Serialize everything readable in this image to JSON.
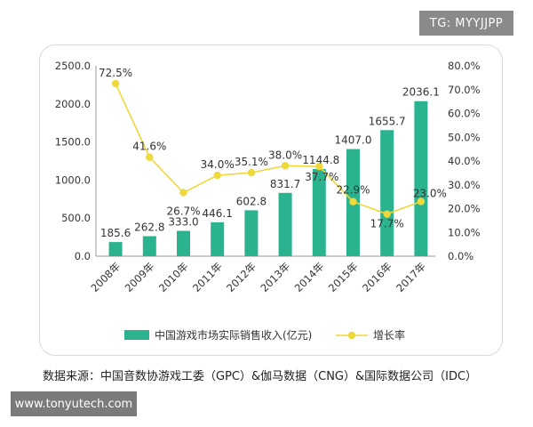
{
  "watermarks": {
    "top": "TG: MYYJJPP",
    "bottom": "www.tonyutech.com"
  },
  "source": "数据来源：中国音数协游戏工委（GPC）&伽马数据（CNG）&国际数据公司（IDC）",
  "colors": {
    "bar": "#2bb28f",
    "line": "#efd83a",
    "axis": "#9a9a9a",
    "text": "#333333"
  },
  "chart_data": {
    "type": "bar",
    "categories": [
      "2008年",
      "2009年",
      "2010年",
      "2011年",
      "2012年",
      "2013年",
      "2014年",
      "2015年",
      "2016年",
      "2017年"
    ],
    "series": [
      {
        "name": "中国游戏市场实际销售收入(亿元)",
        "type": "bar",
        "axis": "left",
        "values": [
          185.6,
          262.8,
          333.0,
          446.1,
          602.8,
          831.7,
          1144.8,
          1407.0,
          1655.7,
          2036.1
        ],
        "labels": [
          "185.6",
          "262.8",
          "333.0",
          "446.1",
          "602.8",
          "831.7",
          "1144.8",
          "1407.0",
          "1655.7",
          "2036.1"
        ]
      },
      {
        "name": "增长率",
        "type": "line",
        "axis": "right",
        "values": [
          72.5,
          41.6,
          26.7,
          34.0,
          35.1,
          38.0,
          37.7,
          22.9,
          17.7,
          23.0
        ],
        "labels": [
          "72.5%",
          "41.6%",
          "26.7%",
          "34.0%",
          "35.1%",
          "38.0%",
          "37.7%",
          "22.9%",
          "17.7%",
          "23.0%"
        ]
      }
    ],
    "ylim": [
      0,
      2500
    ],
    "y2lim": [
      0,
      80
    ],
    "yticks": [
      "0.0",
      "500.0",
      "1000.0",
      "1500.0",
      "2000.0",
      "2500.0"
    ],
    "y2ticks": [
      "0.0%",
      "10.0%",
      "20.0%",
      "30.0%",
      "40.0%",
      "50.0%",
      "60.0%",
      "70.0%",
      "80.0%"
    ],
    "legend": [
      "中国游戏市场实际销售收入(亿元)",
      "增长率"
    ],
    "legend_position": "bottom",
    "grid": false
  }
}
